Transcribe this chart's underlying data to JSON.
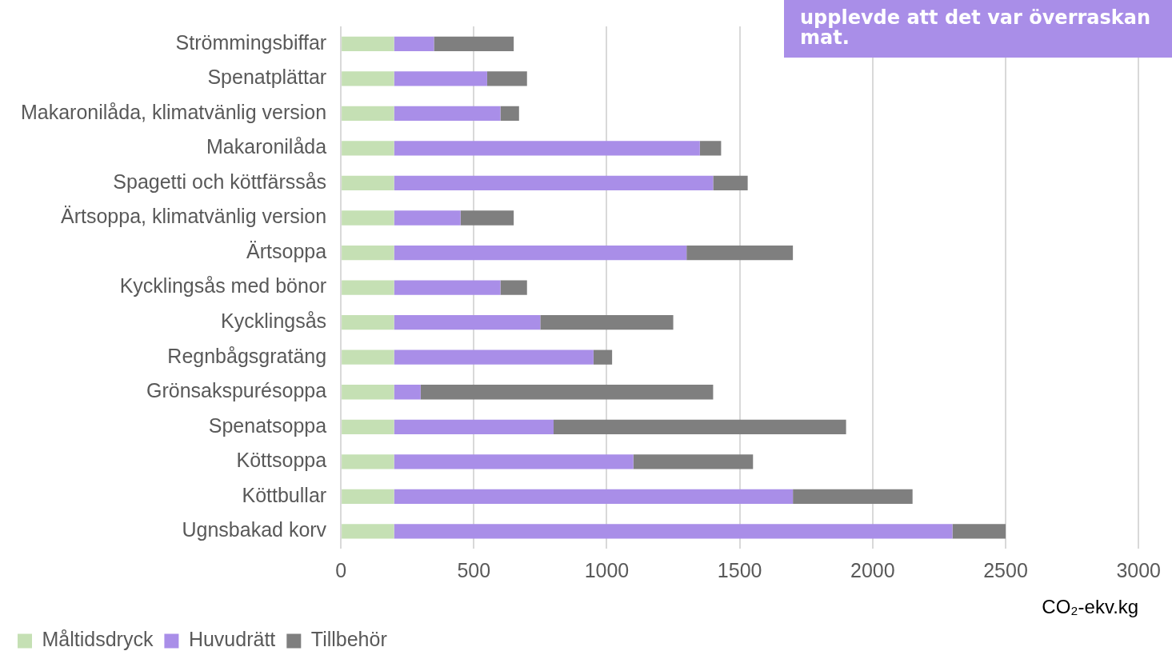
{
  "chart_data": {
    "type": "bar",
    "orientation": "horizontal",
    "stacked": true,
    "xlabel": "CO₂-ekv.kg",
    "categories": [
      "Strömmingsbiffar",
      "Spenatplättar",
      "Makaronilåda, klimatvänlig version",
      "Makaronilåda",
      "Spagetti och köttfärssås",
      "Ärtsoppa, klimatvänlig version",
      "Ärtsoppa",
      "Kycklingsås med bönor",
      "Kycklingsås",
      "Regnbågsgratäng",
      "Grönsakspurésoppa",
      "Spenatsoppa",
      "Köttsoppa",
      "Köttbullar",
      "Ugnsbakad korv"
    ],
    "series": [
      {
        "name": "Måltidsdryck",
        "color": "#c5e0b4",
        "values": [
          200,
          200,
          200,
          200,
          200,
          200,
          200,
          200,
          200,
          200,
          200,
          200,
          200,
          200,
          200
        ]
      },
      {
        "name": "Huvudrätt",
        "color": "#a98ee8",
        "values": [
          150,
          350,
          400,
          1150,
          1200,
          250,
          1100,
          400,
          550,
          750,
          100,
          600,
          900,
          1500,
          2100
        ]
      },
      {
        "name": "Tillbehör",
        "color": "#7f7f7f",
        "values": [
          300,
          150,
          70,
          80,
          130,
          200,
          400,
          100,
          500,
          70,
          1100,
          1100,
          450,
          450,
          200
        ]
      }
    ],
    "xlim": [
      0,
      3000
    ],
    "xticks": [
      0,
      500,
      1000,
      1500,
      2000,
      2500,
      3000
    ],
    "grid": "x",
    "legend": "bottom left",
    "annotations": [
      "upplevde att det var överraskan mat."
    ]
  }
}
